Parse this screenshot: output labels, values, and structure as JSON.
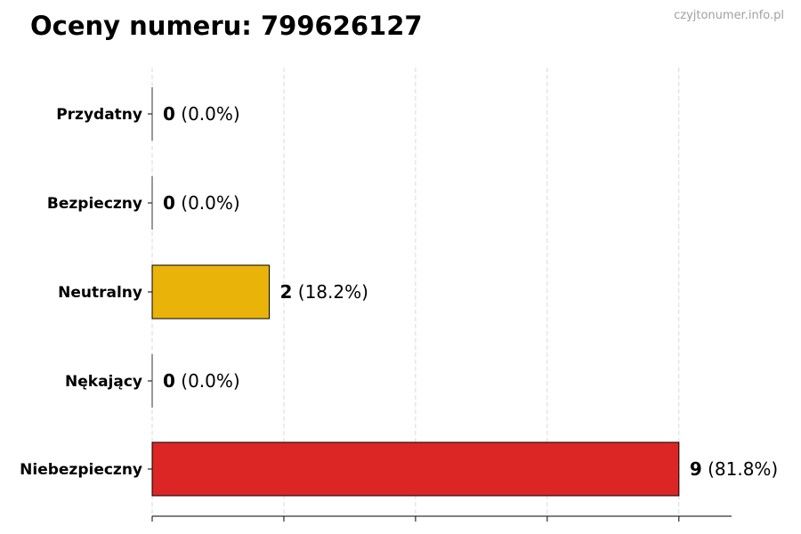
{
  "watermark": "czyjtonumer.info.pl",
  "chart_data": {
    "type": "bar",
    "orientation": "horizontal",
    "title": "Oceny numeru: 799626127",
    "xlabel": "",
    "ylabel": "",
    "xlim": [
      0,
      9.9
    ],
    "xticks": [
      0,
      2.25,
      4.5,
      6.75,
      9
    ],
    "xtick_labels_shown": false,
    "grid": "vertical dashed",
    "categories": [
      "Przydatny",
      "Bezpieczny",
      "Neutralny",
      "Nękający",
      "Niebezpieczny"
    ],
    "values": [
      0,
      0,
      2,
      0,
      9
    ],
    "percent_labels": [
      "(0.0%)",
      "(0.0%)",
      "(18.2%)",
      "(0.0%)",
      "(81.8%)"
    ],
    "colors": [
      "#2e9e4f",
      "#4caf50",
      "#e9b30a",
      "#f08a24",
      "#dc2626"
    ]
  }
}
